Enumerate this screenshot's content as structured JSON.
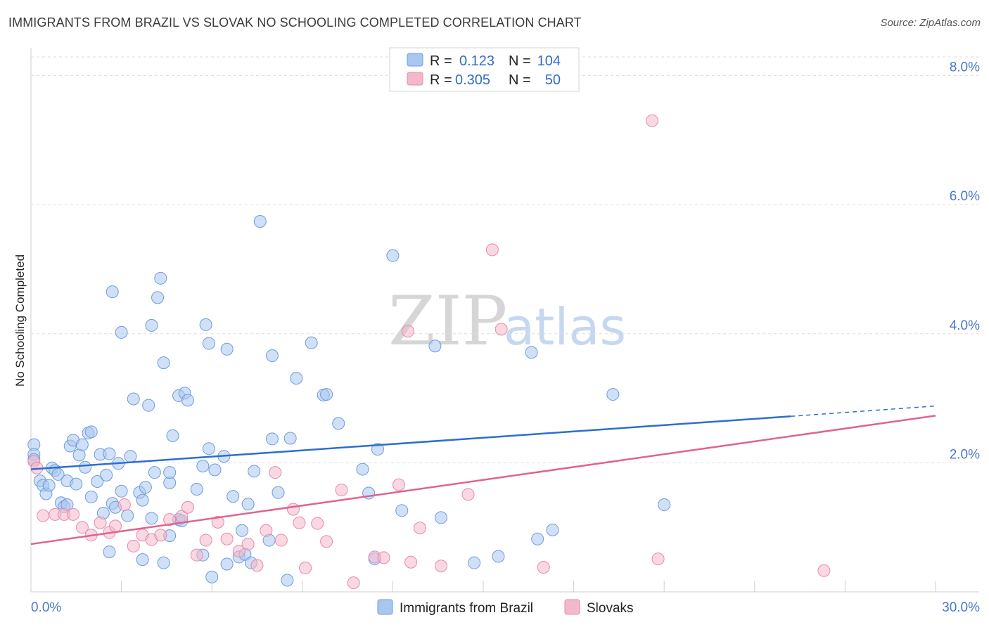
{
  "header": {
    "title": "IMMIGRANTS FROM BRAZIL VS SLOVAK NO SCHOOLING COMPLETED CORRELATION CHART",
    "source": "Source: ZipAtlas.com"
  },
  "watermark": {
    "zip": "ZIP",
    "atlas": "atlas"
  },
  "legend": {
    "rows": [
      {
        "r_label": "R =",
        "r_value": "0.123",
        "n_label": "N =",
        "n_value": "104",
        "color": "#a9c6ef"
      },
      {
        "r_label": "R =",
        "r_value": "0.305",
        "n_label": "N =",
        "n_value": "50",
        "color": "#f4b8cb"
      }
    ]
  },
  "bottom_legend": {
    "items": [
      {
        "label": "Immigrants from Brazil",
        "color": "#a9c6ef"
      },
      {
        "label": "Slovaks",
        "color": "#f4b8cb"
      }
    ]
  },
  "chart_data": {
    "type": "scatter",
    "title": "IMMIGRANTS FROM BRAZIL VS SLOVAK NO SCHOOLING COMPLETED CORRELATION CHART",
    "xlabel": "",
    "ylabel": "No Schooling Completed",
    "xlim": [
      0,
      30
    ],
    "ylim": [
      0,
      8.3
    ],
    "x_tick_labels": [
      "0.0%",
      "30.0%"
    ],
    "y_ticks": [
      2,
      4,
      6,
      8
    ],
    "y_tick_labels": [
      "2.0%",
      "4.0%",
      "6.0%",
      "8.0%"
    ],
    "colors": {
      "brazil": "#a9c6ef",
      "brazil_line": "#2b6fcf",
      "slovak": "#f4b8cb",
      "slovak_line": "#e0638f"
    },
    "series": [
      {
        "name": "Immigrants from Brazil",
        "R": 0.123,
        "N": 104,
        "trend": {
          "x0": 0,
          "y0": 1.9,
          "x1": 25.2,
          "y1": 2.72,
          "dash_to_x": 30,
          "dash_to_y": 2.88
        },
        "points": [
          [
            0.1,
            2.28
          ],
          [
            0.1,
            2.13
          ],
          [
            0.1,
            2.05
          ],
          [
            0.3,
            1.72
          ],
          [
            0.4,
            1.65
          ],
          [
            0.5,
            1.52
          ],
          [
            0.6,
            1.65
          ],
          [
            0.7,
            1.92
          ],
          [
            0.8,
            1.88
          ],
          [
            0.9,
            1.82
          ],
          [
            1.0,
            1.38
          ],
          [
            1.1,
            1.32
          ],
          [
            1.2,
            1.35
          ],
          [
            1.2,
            1.72
          ],
          [
            1.3,
            2.26
          ],
          [
            1.4,
            2.35
          ],
          [
            1.5,
            1.67
          ],
          [
            1.6,
            2.12
          ],
          [
            1.7,
            2.28
          ],
          [
            1.8,
            1.93
          ],
          [
            1.9,
            2.46
          ],
          [
            2.0,
            2.48
          ],
          [
            2.0,
            1.47
          ],
          [
            2.2,
            1.71
          ],
          [
            2.3,
            2.13
          ],
          [
            2.4,
            1.22
          ],
          [
            2.5,
            1.81
          ],
          [
            2.6,
            0.62
          ],
          [
            2.6,
            2.14
          ],
          [
            2.7,
            1.37
          ],
          [
            2.7,
            4.65
          ],
          [
            2.8,
            1.31
          ],
          [
            2.9,
            1.99
          ],
          [
            3.0,
            1.56
          ],
          [
            3.0,
            4.02
          ],
          [
            3.2,
            1.18
          ],
          [
            3.3,
            2.1
          ],
          [
            3.4,
            2.99
          ],
          [
            3.6,
            1.54
          ],
          [
            3.7,
            1.42
          ],
          [
            3.7,
            0.5
          ],
          [
            3.8,
            1.62
          ],
          [
            3.9,
            2.89
          ],
          [
            4.0,
            4.13
          ],
          [
            4.0,
            1.14
          ],
          [
            4.1,
            1.85
          ],
          [
            4.2,
            4.56
          ],
          [
            4.3,
            4.86
          ],
          [
            4.4,
            0.45
          ],
          [
            4.4,
            3.55
          ],
          [
            4.6,
            0.87
          ],
          [
            4.6,
            1.69
          ],
          [
            4.6,
            1.85
          ],
          [
            4.7,
            2.42
          ],
          [
            4.9,
            3.04
          ],
          [
            4.9,
            1.12
          ],
          [
            5.0,
            1.1
          ],
          [
            5.1,
            3.08
          ],
          [
            5.2,
            2.97
          ],
          [
            5.5,
            1.59
          ],
          [
            5.7,
            1.95
          ],
          [
            5.7,
            0.57
          ],
          [
            5.8,
            4.14
          ],
          [
            5.9,
            3.85
          ],
          [
            5.9,
            2.22
          ],
          [
            6.0,
            0.23
          ],
          [
            6.1,
            1.89
          ],
          [
            6.4,
            2.1
          ],
          [
            6.5,
            3.76
          ],
          [
            6.5,
            0.43
          ],
          [
            6.7,
            1.48
          ],
          [
            6.9,
            0.54
          ],
          [
            7.0,
            0.95
          ],
          [
            7.1,
            0.58
          ],
          [
            7.2,
            1.36
          ],
          [
            7.3,
            0.45
          ],
          [
            7.4,
            1.87
          ],
          [
            7.6,
            5.74
          ],
          [
            7.9,
            0.8
          ],
          [
            8.0,
            3.66
          ],
          [
            8.0,
            2.37
          ],
          [
            8.2,
            1.54
          ],
          [
            8.6,
            2.38
          ],
          [
            8.8,
            3.31
          ],
          [
            9.3,
            3.86
          ],
          [
            9.7,
            3.05
          ],
          [
            9.8,
            3.06
          ],
          [
            10.2,
            2.61
          ],
          [
            11.0,
            1.9
          ],
          [
            11.2,
            1.53
          ],
          [
            11.4,
            0.51
          ],
          [
            11.5,
            2.21
          ],
          [
            12.0,
            5.21
          ],
          [
            12.3,
            1.26
          ],
          [
            13.4,
            3.81
          ],
          [
            13.6,
            1.15
          ],
          [
            14.7,
            0.45
          ],
          [
            16.6,
            3.71
          ],
          [
            19.3,
            3.06
          ],
          [
            21.0,
            1.35
          ],
          [
            8.5,
            0.18
          ],
          [
            15.5,
            0.55
          ],
          [
            16.8,
            0.82
          ],
          [
            17.3,
            0.96
          ]
        ]
      },
      {
        "name": "Slovaks",
        "R": 0.305,
        "N": 50,
        "trend": {
          "x0": 0,
          "y0": 0.74,
          "x1": 30,
          "y1": 2.73
        },
        "points": [
          [
            0.1,
            2.02
          ],
          [
            0.2,
            1.92
          ],
          [
            0.4,
            1.18
          ],
          [
            0.8,
            1.2
          ],
          [
            1.1,
            1.2
          ],
          [
            1.4,
            1.2
          ],
          [
            1.7,
            1.0
          ],
          [
            2.0,
            0.88
          ],
          [
            2.3,
            1.07
          ],
          [
            2.6,
            0.92
          ],
          [
            2.8,
            1.02
          ],
          [
            3.1,
            1.35
          ],
          [
            3.4,
            0.71
          ],
          [
            3.7,
            0.88
          ],
          [
            4.0,
            0.81
          ],
          [
            4.3,
            0.88
          ],
          [
            4.6,
            1.12
          ],
          [
            5.0,
            1.17
          ],
          [
            5.2,
            1.31
          ],
          [
            5.5,
            0.57
          ],
          [
            5.8,
            0.8
          ],
          [
            6.2,
            1.08
          ],
          [
            6.5,
            0.82
          ],
          [
            6.9,
            0.63
          ],
          [
            7.2,
            0.74
          ],
          [
            7.5,
            0.41
          ],
          [
            7.8,
            0.95
          ],
          [
            8.1,
            1.85
          ],
          [
            8.3,
            0.8
          ],
          [
            8.7,
            1.28
          ],
          [
            8.9,
            1.07
          ],
          [
            9.1,
            0.37
          ],
          [
            9.5,
            1.06
          ],
          [
            9.8,
            0.78
          ],
          [
            10.3,
            1.58
          ],
          [
            10.7,
            0.14
          ],
          [
            11.4,
            0.54
          ],
          [
            11.7,
            0.53
          ],
          [
            12.2,
            1.66
          ],
          [
            12.5,
            4.04
          ],
          [
            12.6,
            0.46
          ],
          [
            12.9,
            0.99
          ],
          [
            13.6,
            0.4
          ],
          [
            14.5,
            1.51
          ],
          [
            15.3,
            5.3
          ],
          [
            15.6,
            4.07
          ],
          [
            17.0,
            0.38
          ],
          [
            20.6,
            7.3
          ],
          [
            20.8,
            0.51
          ],
          [
            26.3,
            0.33
          ]
        ]
      }
    ]
  }
}
